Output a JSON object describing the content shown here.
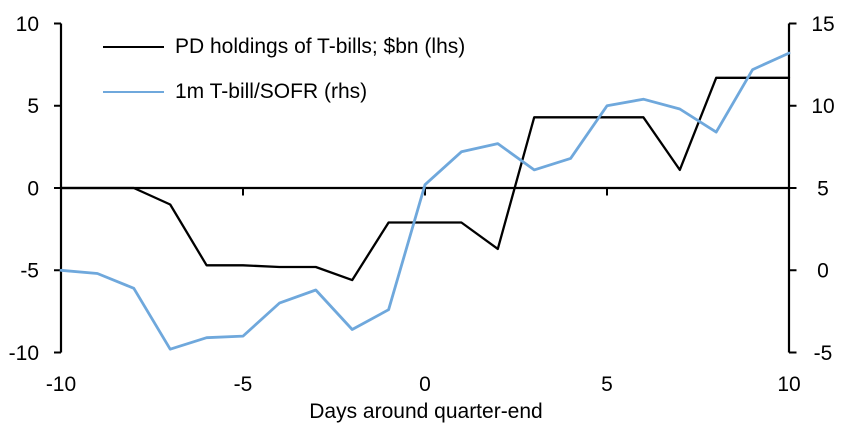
{
  "chart_data": {
    "type": "line",
    "title": "",
    "xlabel": "Days around quarter-end",
    "grid": false,
    "zero_line": true,
    "legend_position": "top-left",
    "x_axis": {
      "min": -10,
      "max": 10,
      "tick_values": [
        -10,
        -5,
        0,
        5,
        10
      ],
      "tick_labels": [
        "-10",
        "-5",
        "0",
        "5",
        "10"
      ]
    },
    "left_axis": {
      "min": -10,
      "max": 10,
      "tick_values": [
        10,
        5,
        0,
        -5,
        -10
      ],
      "tick_labels": [
        "10",
        "5",
        "0",
        "-5",
        "-10"
      ]
    },
    "right_axis": {
      "min": -5,
      "max": 15,
      "tick_values": [
        15,
        10,
        5,
        0,
        -5
      ],
      "tick_labels": [
        "15",
        "10",
        "5",
        "0",
        "-5"
      ]
    },
    "x": [
      -10,
      -9,
      -8,
      -7,
      -6,
      -5,
      -4,
      -3,
      -2,
      -1,
      0,
      1,
      2,
      3,
      4,
      5,
      6,
      7,
      8,
      9,
      10
    ],
    "series": [
      {
        "name": "PD holdings of T-bills; $bn (lhs)",
        "axis": "left",
        "color": "#000000",
        "stroke_width": 2.3,
        "values": [
          0,
          0,
          0,
          -1.0,
          -4.7,
          -4.7,
          -4.8,
          -4.8,
          -5.6,
          -2.1,
          -2.1,
          -2.1,
          -3.7,
          4.3,
          4.3,
          4.3,
          4.3,
          1.1,
          6.7,
          6.7,
          6.7
        ]
      },
      {
        "name": "1m T-bill/SOFR (rhs)",
        "axis": "right",
        "color": "#6FA8DC",
        "stroke_width": 2.8,
        "values": [
          0.0,
          -0.2,
          -1.1,
          -4.8,
          -4.1,
          -4.0,
          -2.0,
          -1.2,
          -3.6,
          -2.4,
          5.2,
          7.2,
          7.7,
          6.1,
          6.8,
          10.0,
          10.4,
          9.8,
          8.4,
          12.2,
          13.2
        ]
      }
    ],
    "colors": {
      "background": "#FFFFFF",
      "axis": "#000000",
      "series1": "#000000",
      "series2": "#6FA8DC"
    }
  }
}
